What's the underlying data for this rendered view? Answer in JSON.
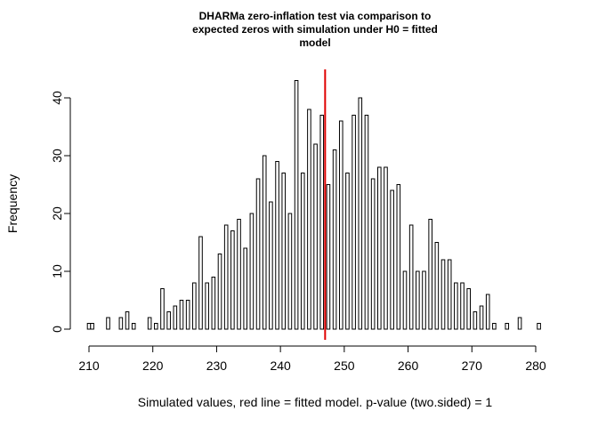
{
  "chart_data": {
    "type": "bar",
    "title_lines": [
      "DHARMa zero-inflation test via comparison to",
      "expected zeros with simulation under H0 = fitted",
      "model"
    ],
    "xlabel": "Simulated values, red line = fitted model. p-value (two.sided) = 1",
    "ylabel": "Frequency",
    "xlim": [
      209,
      281
    ],
    "ylim": [
      0,
      43
    ],
    "x_ticks": [
      210,
      220,
      230,
      240,
      250,
      260,
      270,
      280
    ],
    "y_ticks": [
      0,
      10,
      20,
      30,
      40
    ],
    "bin_width": 0.5,
    "bins": [
      {
        "x": 210,
        "count": 1
      },
      {
        "x": 210.5,
        "count": 1
      },
      {
        "x": 213,
        "count": 2
      },
      {
        "x": 215,
        "count": 2
      },
      {
        "x": 216,
        "count": 3
      },
      {
        "x": 217,
        "count": 1
      },
      {
        "x": 219.5,
        "count": 2
      },
      {
        "x": 220.5,
        "count": 1
      },
      {
        "x": 221.5,
        "count": 7
      },
      {
        "x": 222.5,
        "count": 3
      },
      {
        "x": 223.5,
        "count": 4
      },
      {
        "x": 224.5,
        "count": 5
      },
      {
        "x": 225.5,
        "count": 5
      },
      {
        "x": 226.5,
        "count": 8
      },
      {
        "x": 227.5,
        "count": 16
      },
      {
        "x": 228.5,
        "count": 8
      },
      {
        "x": 229.5,
        "count": 9
      },
      {
        "x": 230.5,
        "count": 13
      },
      {
        "x": 231.5,
        "count": 18
      },
      {
        "x": 232.5,
        "count": 17
      },
      {
        "x": 233.5,
        "count": 19
      },
      {
        "x": 234.5,
        "count": 14
      },
      {
        "x": 235.5,
        "count": 20
      },
      {
        "x": 236.5,
        "count": 26
      },
      {
        "x": 237.5,
        "count": 30
      },
      {
        "x": 238.5,
        "count": 22
      },
      {
        "x": 239.5,
        "count": 29
      },
      {
        "x": 240.5,
        "count": 27
      },
      {
        "x": 241.5,
        "count": 20
      },
      {
        "x": 242.5,
        "count": 43
      },
      {
        "x": 243.5,
        "count": 27
      },
      {
        "x": 244.5,
        "count": 38
      },
      {
        "x": 245.5,
        "count": 32
      },
      {
        "x": 246.5,
        "count": 37
      },
      {
        "x": 247.5,
        "count": 25
      },
      {
        "x": 248.5,
        "count": 31
      },
      {
        "x": 249.5,
        "count": 36
      },
      {
        "x": 250.5,
        "count": 27
      },
      {
        "x": 251.5,
        "count": 37
      },
      {
        "x": 252.5,
        "count": 40
      },
      {
        "x": 253.5,
        "count": 37
      },
      {
        "x": 254.5,
        "count": 26
      },
      {
        "x": 255.5,
        "count": 28
      },
      {
        "x": 256.5,
        "count": 28
      },
      {
        "x": 257.5,
        "count": 24
      },
      {
        "x": 258.5,
        "count": 25
      },
      {
        "x": 259.5,
        "count": 10
      },
      {
        "x": 260.5,
        "count": 18
      },
      {
        "x": 261.5,
        "count": 10
      },
      {
        "x": 262.5,
        "count": 10
      },
      {
        "x": 263.5,
        "count": 19
      },
      {
        "x": 264.5,
        "count": 15
      },
      {
        "x": 265.5,
        "count": 12
      },
      {
        "x": 266.5,
        "count": 12
      },
      {
        "x": 267.5,
        "count": 8
      },
      {
        "x": 268.5,
        "count": 8
      },
      {
        "x": 269.5,
        "count": 7
      },
      {
        "x": 270.5,
        "count": 3
      },
      {
        "x": 271.5,
        "count": 4
      },
      {
        "x": 272.5,
        "count": 6
      },
      {
        "x": 273.5,
        "count": 1
      },
      {
        "x": 275.5,
        "count": 1
      },
      {
        "x": 277.5,
        "count": 2
      },
      {
        "x": 280.5,
        "count": 1
      }
    ],
    "reference_line": {
      "x": 247,
      "color": "#e00000"
    }
  }
}
